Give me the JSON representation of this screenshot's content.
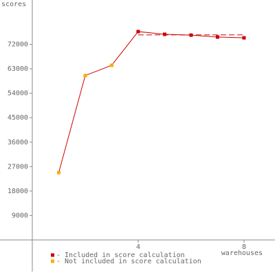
{
  "chart_data": {
    "type": "line",
    "y_label": "scores",
    "x_label": "warehouses",
    "xlim": [
      -1.22,
      9.17
    ],
    "ylim": [
      -11136,
      88330
    ],
    "xticks": [
      4,
      8
    ],
    "yticks": [
      9000,
      18000,
      27000,
      36000,
      45000,
      54000,
      63000,
      72000
    ],
    "line_color": "#cc0000",
    "series": [
      {
        "name": "- Included in score calculation",
        "color": "#cc0000",
        "x": [
          4,
          5,
          6,
          7,
          8
        ],
        "values": [
          76700,
          75700,
          75400,
          74700,
          74400
        ]
      },
      {
        "name": "- Not included in score calculation",
        "color": "#ffaa00",
        "x": [
          1,
          2,
          3
        ],
        "values": [
          24800,
          60500,
          64300
        ]
      }
    ],
    "score": 75500,
    "score_x": [
      4,
      8
    ]
  }
}
